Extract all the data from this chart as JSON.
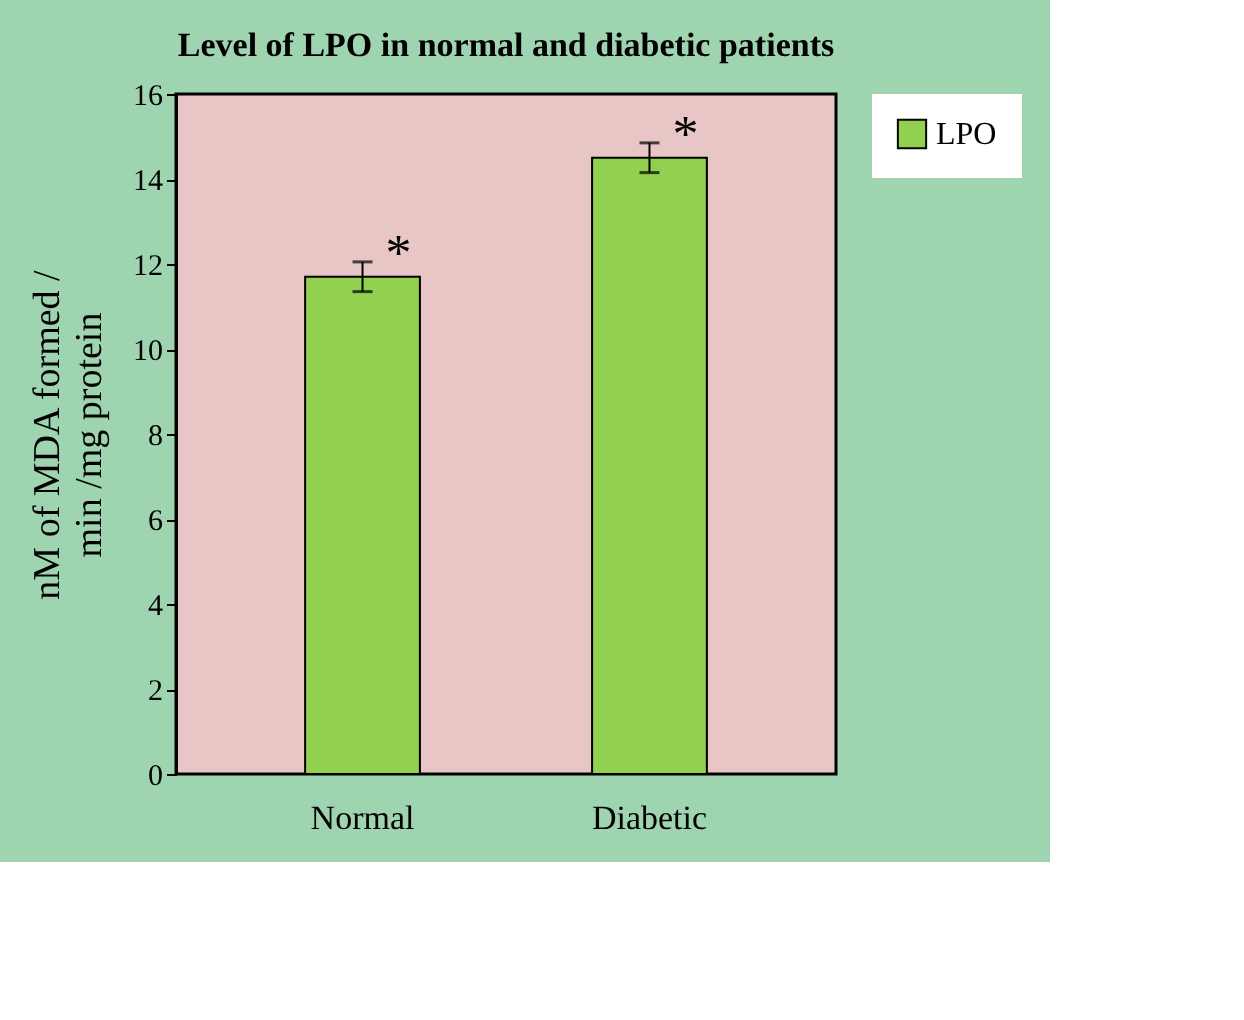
{
  "chart_data": {
    "type": "bar",
    "title": "Level of LPO in normal and diabetic patients",
    "ylabel": "nM of MDA formed /\nmin /mg protein",
    "categories": [
      "Normal",
      "Diabetic"
    ],
    "series": [
      {
        "name": "LPO",
        "color": "#92d050",
        "values": [
          11.7,
          14.5
        ],
        "errors": [
          0.35,
          0.35
        ]
      }
    ],
    "ylim": [
      0,
      16
    ],
    "yticks": [
      0,
      2,
      4,
      6,
      8,
      10,
      12,
      14,
      16
    ],
    "grid": false,
    "legend": "right",
    "annotations": [
      "*",
      "*"
    ]
  }
}
